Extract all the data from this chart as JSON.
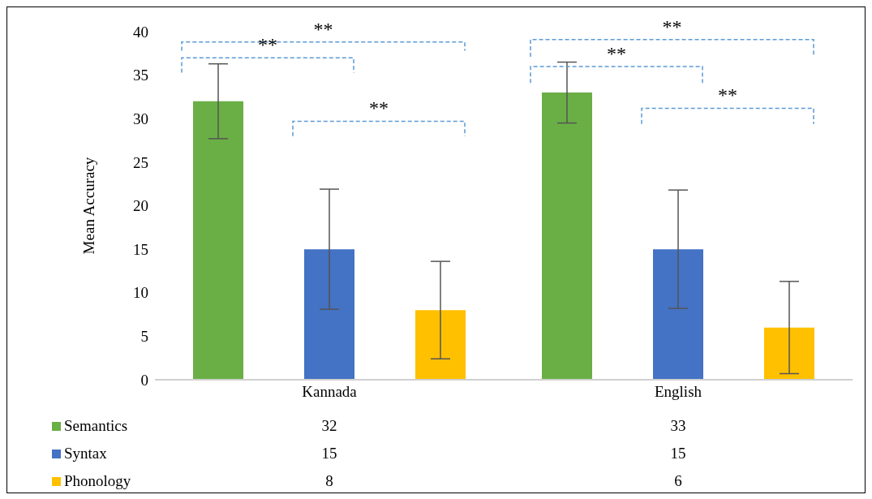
{
  "chart_data": {
    "type": "bar",
    "ylabel": "Mean Accuracy",
    "categories": [
      "Kannada",
      "English"
    ],
    "series": [
      {
        "name": "Semantics",
        "color": "#6aaf45",
        "values": [
          32,
          33
        ],
        "errors": [
          4.3,
          3.5
        ]
      },
      {
        "name": "Syntax",
        "color": "#4472c4",
        "values": [
          15,
          15
        ],
        "errors": [
          6.9,
          6.8
        ]
      },
      {
        "name": "Phonology",
        "color": "#ffc000",
        "values": [
          8,
          6
        ],
        "errors": [
          5.6,
          5.3
        ]
      }
    ],
    "ylim": [
      0,
      40
    ],
    "yticks": [
      0,
      5,
      10,
      15,
      20,
      25,
      30,
      35,
      40
    ],
    "legend": "bottom left",
    "data_labels": true,
    "annotations": [
      "**",
      "**",
      "**",
      "**",
      "**",
      "**"
    ]
  }
}
